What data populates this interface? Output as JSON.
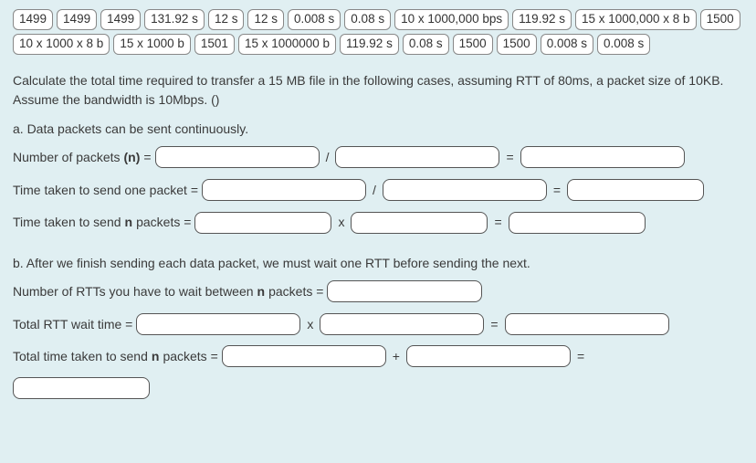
{
  "colors": {
    "background": "#e0eff2",
    "chip_bg": "#ffffff",
    "chip_border": "#888888",
    "blank_bg": "#ffffff",
    "blank_border": "#555555",
    "text": "#3a3a3a"
  },
  "chips": [
    "1499",
    "1499",
    "1499",
    "131.92 s",
    "12 s",
    "12 s",
    "0.008 s",
    "0.08 s",
    "10 x 1000,000 bps",
    "119.92 s",
    "15 x 1000,000 x 8 b",
    "1500",
    "10 x 1000 x 8 b",
    "15 x 1000 b",
    "1501",
    "15 x 1000000 b",
    "119.92 s",
    "0.08 s",
    "1500",
    "1500",
    "0.008 s",
    "0.008 s"
  ],
  "question": {
    "intro": "Calculate the total time required to transfer a 15 MB file in the following cases, assuming RTT of 80ms, a packet size of 10KB. Assume the bandwidth is 10Mbps. ()",
    "part_a": {
      "heading": "a. Data packets can be sent continuously.",
      "l1_pre": "Number of packets ",
      "l1_bold": "(n)",
      "l1_post": " = ",
      "l2": "Time taken to send one packet = ",
      "l3_pre": "Time taken to send ",
      "l3_bold": "n",
      "l3_post": " packets = "
    },
    "part_b": {
      "heading": "b. After we finish sending each data packet, we must wait one RTT before sending the next.",
      "l1_pre": "Number of RTTs you have to wait between ",
      "l1_bold": "n",
      "l1_post": " packets = ",
      "l2": "Total RTT wait time = ",
      "l3_pre": "Total time taken to send ",
      "l3_bold": "n",
      "l3_post": " packets = "
    }
  },
  "ops": {
    "div": "/",
    "mul": "x",
    "eq": "=",
    "plus": "+"
  },
  "blank_widths": {
    "sm": 150,
    "md": 170,
    "lg": 180
  }
}
